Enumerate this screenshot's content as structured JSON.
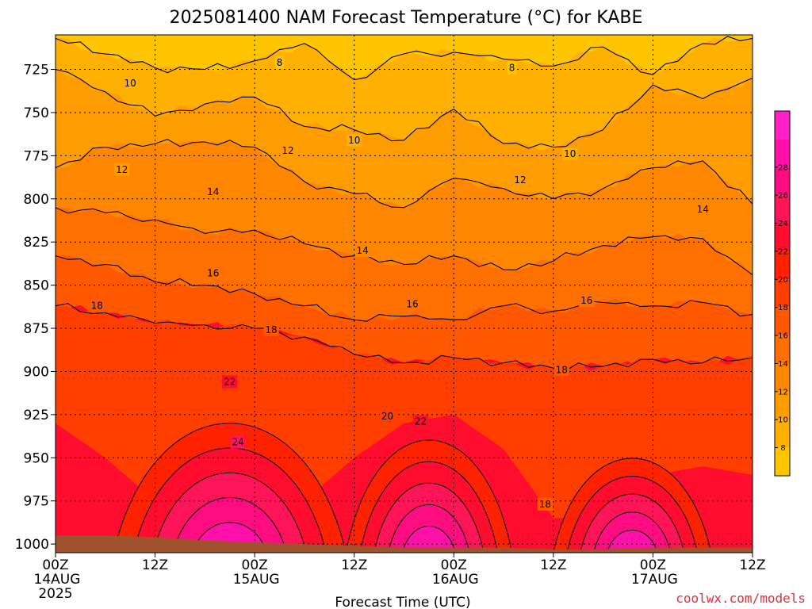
{
  "chart_data": {
    "type": "heatmap",
    "title": "2025081400 NAM Forecast Temperature (°C) for KABE",
    "xlabel": "Forecast Time (UTC)",
    "ylabel": "",
    "y_axis": "pressure (hPa), inverted",
    "ylim": [
      1005,
      705
    ],
    "yticks": [
      725,
      750,
      775,
      800,
      825,
      850,
      875,
      900,
      925,
      950,
      975,
      1000
    ],
    "xlim": [
      0,
      84
    ],
    "x_unit": "forecast hours",
    "xticks": [
      {
        "hour": 0,
        "label": "00Z",
        "date": "14AUG",
        "year": "2025"
      },
      {
        "hour": 12,
        "label": "12Z"
      },
      {
        "hour": 24,
        "label": "00Z",
        "date": "15AUG"
      },
      {
        "hour": 36,
        "label": "12Z"
      },
      {
        "hour": 48,
        "label": "00Z",
        "date": "16AUG"
      },
      {
        "hour": 60,
        "label": "12Z"
      },
      {
        "hour": 72,
        "label": "00Z",
        "date": "17AUG"
      },
      {
        "hour": 84,
        "label": "12Z"
      }
    ],
    "grid": true,
    "colorbar": {
      "location": "right",
      "levels": [
        6,
        8,
        10,
        12,
        14,
        16,
        18,
        20,
        22,
        24,
        26,
        28,
        30
      ],
      "tick_labels": [
        "8",
        "10",
        "12",
        "14",
        "16",
        "18",
        "20",
        "22",
        "24",
        "26",
        "28"
      ],
      "colors": [
        "#ffc600",
        "#ffb000",
        "#ff9c00",
        "#ff8600",
        "#ff7000",
        "#ff5800",
        "#ff3e00",
        "#ff2200",
        "#ff0c2e",
        "#ff1458",
        "#ff0c80",
        "#ff10a8",
        "#ff20c8"
      ]
    },
    "hours": [
      0,
      6,
      12,
      18,
      24,
      30,
      36,
      42,
      48,
      54,
      60,
      66,
      72,
      78,
      84
    ],
    "contour_levels": [
      {
        "level": 8,
        "pressure": [
          707,
          716,
          724,
          725,
          720,
          710,
          731,
          716,
          715,
          719,
          723,
          712,
          728,
          710,
          707
        ]
      },
      {
        "level": 10,
        "pressure": [
          725,
          738,
          752,
          745,
          741,
          758,
          760,
          766,
          748,
          768,
          770,
          760,
          734,
          742,
          730
        ]
      },
      {
        "level": 12,
        "pressure": [
          782,
          770,
          768,
          767,
          770,
          790,
          797,
          805,
          788,
          794,
          800,
          794,
          782,
          778,
          803
        ]
      },
      {
        "level": 14,
        "pressure": [
          805,
          808,
          812,
          820,
          818,
          826,
          833,
          838,
          833,
          841,
          836,
          827,
          822,
          823,
          844
        ]
      },
      {
        "level": 16,
        "pressure": [
          833,
          838,
          848,
          850,
          855,
          862,
          870,
          868,
          870,
          862,
          865,
          860,
          862,
          860,
          867
        ]
      },
      {
        "level": 18,
        "pressure": [
          862,
          866,
          872,
          873,
          875,
          880,
          890,
          895,
          892,
          895,
          898,
          897,
          893,
          895,
          892
        ]
      }
    ],
    "surface_pressure": [
      995,
      995,
      996,
      998,
      999,
      1000,
      1001,
      1002,
      1002,
      1002,
      1003,
      1003,
      1002,
      1002,
      1002
    ],
    "contour_labels": [
      {
        "text": "8",
        "hour": 27,
        "pressure": 721
      },
      {
        "text": "8",
        "hour": 55,
        "pressure": 724
      },
      {
        "text": "10",
        "hour": 9,
        "pressure": 733
      },
      {
        "text": "10",
        "hour": 36,
        "pressure": 766
      },
      {
        "text": "10",
        "hour": 62,
        "pressure": 774
      },
      {
        "text": "12",
        "hour": 8,
        "pressure": 783
      },
      {
        "text": "12",
        "hour": 28,
        "pressure": 772
      },
      {
        "text": "12",
        "hour": 56,
        "pressure": 789
      },
      {
        "text": "14",
        "hour": 19,
        "pressure": 796
      },
      {
        "text": "14",
        "hour": 37,
        "pressure": 830
      },
      {
        "text": "14",
        "hour": 78,
        "pressure": 806
      },
      {
        "text": "16",
        "hour": 19,
        "pressure": 843
      },
      {
        "text": "16",
        "hour": 43,
        "pressure": 861
      },
      {
        "text": "16",
        "hour": 64,
        "pressure": 859
      },
      {
        "text": "18",
        "hour": 5,
        "pressure": 862
      },
      {
        "text": "18",
        "hour": 26,
        "pressure": 876
      },
      {
        "text": "18",
        "hour": 61,
        "pressure": 899
      },
      {
        "text": "18",
        "hour": 59,
        "pressure": 977
      },
      {
        "text": "20",
        "hour": 40,
        "pressure": 926
      },
      {
        "text": "22",
        "hour": 21,
        "pressure": 906
      },
      {
        "text": "22",
        "hour": 44,
        "pressure": 929
      },
      {
        "text": "24",
        "hour": 22,
        "pressure": 941
      }
    ]
  },
  "watermark": "coolwx.com/models"
}
